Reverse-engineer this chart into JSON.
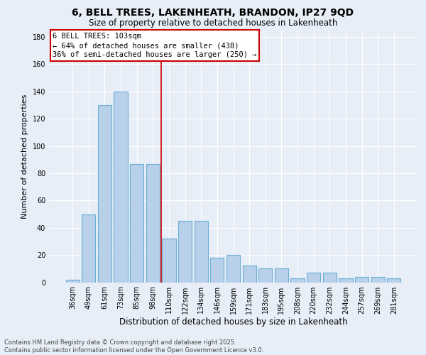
{
  "title": "6, BELL TREES, LAKENHEATH, BRANDON, IP27 9QD",
  "subtitle": "Size of property relative to detached houses in Lakenheath",
  "xlabel": "Distribution of detached houses by size in Lakenheath",
  "ylabel": "Number of detached properties",
  "categories": [
    "36sqm",
    "49sqm",
    "61sqm",
    "73sqm",
    "85sqm",
    "98sqm",
    "110sqm",
    "122sqm",
    "134sqm",
    "146sqm",
    "159sqm",
    "171sqm",
    "183sqm",
    "195sqm",
    "208sqm",
    "220sqm",
    "232sqm",
    "244sqm",
    "257sqm",
    "269sqm",
    "281sqm"
  ],
  "values": [
    2,
    50,
    130,
    140,
    87,
    87,
    32,
    45,
    45,
    18,
    20,
    12,
    10,
    10,
    3,
    7,
    7,
    3,
    4,
    4,
    3
  ],
  "bar_color": "#b8d0ea",
  "bar_edge_color": "#6aaed6",
  "property_label": "6 BELL TREES: 103sqm",
  "annotation_line1": "← 64% of detached houses are smaller (438)",
  "annotation_line2": "36% of semi-detached houses are larger (250) →",
  "vline_position": 5.5,
  "annotation_box_facecolor": "#ffffff",
  "annotation_box_edgecolor": "#cc0000",
  "vline_color": "#cc0000",
  "footer1": "Contains HM Land Registry data © Crown copyright and database right 2025.",
  "footer2": "Contains public sector information licensed under the Open Government Licence v3.0.",
  "background_color": "#e8eef7",
  "plot_bg_color": "#e8eef7",
  "ylim": [
    0,
    185
  ],
  "yticks": [
    0,
    20,
    40,
    60,
    80,
    100,
    120,
    140,
    160,
    180
  ],
  "title_fontsize": 10,
  "subtitle_fontsize": 8.5,
  "ylabel_fontsize": 8,
  "xlabel_fontsize": 8.5,
  "tick_fontsize": 7,
  "footer_fontsize": 6,
  "annot_fontsize": 7.5
}
